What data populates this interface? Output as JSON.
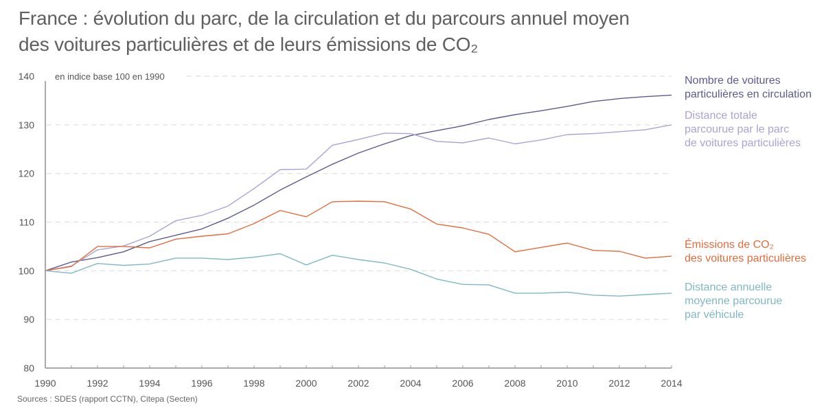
{
  "title": {
    "line1": "France : évolution du parc, de la circulation et du parcours annuel moyen",
    "line2": "des voitures particulières et de leurs émissions de CO₂"
  },
  "source": "Sources : SDES (rapport CCTN), Citepa (Secten)",
  "chart_data": {
    "type": "line",
    "title": "France : évolution du parc, de la circulation et du parcours annuel moyen des voitures particulières et de leurs émissions de CO₂",
    "unit_note": "en indice base 100 en 1990",
    "xlabel": "",
    "ylabel": "",
    "x": [
      1990,
      1991,
      1992,
      1993,
      1994,
      1995,
      1996,
      1997,
      1998,
      1999,
      2000,
      2001,
      2002,
      2003,
      2004,
      2005,
      2006,
      2007,
      2008,
      2009,
      2010,
      2011,
      2012,
      2013,
      2014
    ],
    "x_ticks": [
      "1990",
      "1992",
      "1994",
      "1996",
      "1998",
      "2000",
      "2002",
      "2004",
      "2006",
      "2008",
      "2010",
      "2012",
      "2014"
    ],
    "y_ticks": [
      "80",
      "90",
      "100",
      "110",
      "120",
      "130",
      "140"
    ],
    "xlim": [
      1990,
      2014
    ],
    "ylim": [
      80,
      140
    ],
    "grid": "horizontal-dashed",
    "legend_placement": "right, labels at line ends",
    "series": [
      {
        "name": "Nombre de voitures particulières en circulation",
        "label_lines": [
          "Nombre de voitures",
          "particulières en circulation"
        ],
        "color": "#5b5a8f",
        "values": [
          100,
          101.8,
          102.7,
          103.9,
          106.0,
          107.3,
          108.6,
          110.8,
          113.5,
          116.6,
          119.3,
          121.9,
          124.2,
          126.1,
          127.8,
          128.8,
          129.8,
          131.1,
          132.1,
          132.9,
          133.8,
          134.8,
          135.4,
          135.8,
          136.1
        ]
      },
      {
        "name": "Distance totale parcourue par le parc de voitures particulières",
        "label_lines": [
          "Distance totale",
          "parcourue par le parc",
          "de voitures particulières"
        ],
        "color": "#a9a3d6",
        "values": [
          100,
          101.0,
          104.3,
          105.1,
          107.1,
          110.3,
          111.4,
          113.3,
          116.9,
          120.8,
          120.9,
          125.8,
          127.0,
          128.3,
          128.2,
          126.6,
          126.3,
          127.3,
          126.1,
          126.9,
          128.0,
          128.2,
          128.6,
          129.0,
          130.0
        ]
      },
      {
        "name": "Émissions de CO₂ des voitures particulières",
        "label_lines": [
          "Émissions de CO₂",
          "des voitures particulières"
        ],
        "color": "#e56b3a",
        "values": [
          100,
          100.9,
          105.0,
          105.0,
          104.7,
          106.5,
          107.1,
          107.6,
          109.7,
          112.4,
          111.1,
          114.2,
          114.3,
          114.2,
          112.7,
          109.6,
          108.8,
          107.5,
          103.9,
          104.8,
          105.7,
          104.2,
          104.0,
          102.6,
          103.0
        ]
      },
      {
        "name": "Distance annuelle moyenne parcourue par véhicule",
        "label_lines": [
          "Distance annuelle",
          "moyenne parcourue",
          "par véhicule"
        ],
        "color": "#7fb8c4",
        "values": [
          100,
          99.5,
          101.5,
          101.1,
          101.4,
          102.6,
          102.6,
          102.3,
          102.8,
          103.5,
          101.2,
          103.2,
          102.3,
          101.6,
          100.3,
          98.3,
          97.2,
          97.1,
          95.4,
          95.4,
          95.6,
          95.0,
          94.8,
          95.1,
          95.4
        ]
      }
    ]
  }
}
